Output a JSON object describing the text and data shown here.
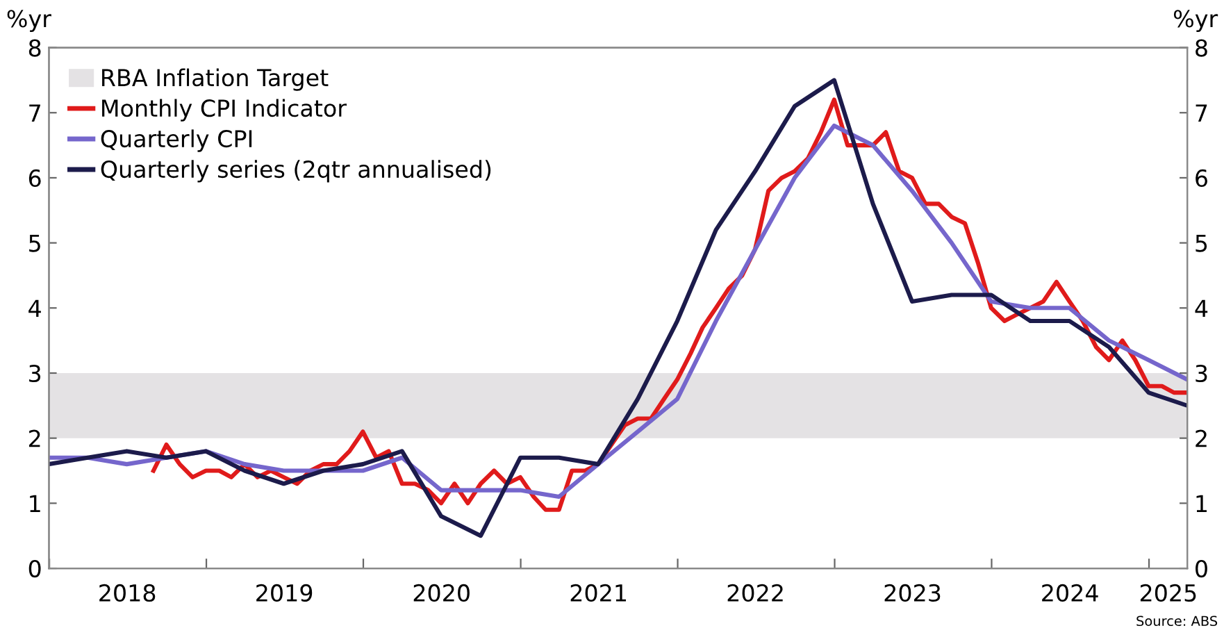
{
  "chart_data": {
    "type": "line",
    "ylabel": "%yr",
    "y2label": "%yr",
    "xlim": [
      "2017-12-31",
      "2025-03-31"
    ],
    "xticks": [
      {
        "value": "2018-01-01",
        "label": null
      },
      {
        "value": "2019-01-01",
        "label": null
      },
      {
        "value": "2020-01-01",
        "label": null
      },
      {
        "value": "2021-01-01",
        "label": null
      },
      {
        "value": "2022-01-01",
        "label": null
      },
      {
        "value": "2023-01-01",
        "label": null
      },
      {
        "value": "2024-01-01",
        "label": null
      },
      {
        "value": "2025-01-01",
        "label": null
      },
      {
        "value": "2018-07-01",
        "label": "2018"
      },
      {
        "value": "2019-07-01",
        "label": "2019"
      },
      {
        "value": "2020-07-01",
        "label": "2020"
      },
      {
        "value": "2021-07-01",
        "label": "2021"
      },
      {
        "value": "2022-07-01",
        "label": "2022"
      },
      {
        "value": "2023-07-01",
        "label": "2023"
      },
      {
        "value": "2024-07-01",
        "label": "2024"
      },
      {
        "value": "2025-02-15",
        "label": "2025"
      }
    ],
    "ylim": [
      0,
      8
    ],
    "yticks": [
      0,
      1,
      2,
      3,
      4,
      5,
      6,
      7,
      8
    ],
    "y2lim": [
      0,
      8
    ],
    "y2ticks": [
      0,
      1,
      2,
      3,
      4,
      5,
      6,
      7,
      8
    ],
    "grid": false,
    "legend": "top left",
    "line_style": "solid",
    "marker": "none",
    "bands": [
      {
        "axis": "y",
        "from": 2,
        "to": 3,
        "label": "RBA Inflation Target",
        "color": "#e4e2e4"
      }
    ],
    "series": [
      {
        "name": "Monthly CPI Indicator",
        "color": "#e01b1b",
        "x": [
          "2018-08-31",
          "2018-09-30",
          "2018-10-31",
          "2018-11-30",
          "2018-12-31",
          "2019-01-31",
          "2019-02-28",
          "2019-03-31",
          "2019-04-30",
          "2019-05-31",
          "2019-06-30",
          "2019-07-31",
          "2019-08-31",
          "2019-09-30",
          "2019-10-31",
          "2019-11-30",
          "2019-12-31",
          "2020-01-31",
          "2020-02-29",
          "2020-03-31",
          "2020-04-30",
          "2020-05-31",
          "2020-06-30",
          "2020-07-31",
          "2020-08-31",
          "2020-09-30",
          "2020-10-31",
          "2020-11-30",
          "2020-12-31",
          "2021-01-31",
          "2021-02-28",
          "2021-03-31",
          "2021-04-30",
          "2021-05-31",
          "2021-06-30",
          "2021-07-31",
          "2021-08-31",
          "2021-09-30",
          "2021-10-31",
          "2021-11-30",
          "2021-12-31",
          "2022-01-31",
          "2022-02-28",
          "2022-03-31",
          "2022-04-30",
          "2022-05-31",
          "2022-06-30",
          "2022-07-31",
          "2022-08-31",
          "2022-09-30",
          "2022-10-31",
          "2022-11-30",
          "2022-12-31",
          "2023-01-31",
          "2023-02-28",
          "2023-03-31",
          "2023-04-30",
          "2023-05-31",
          "2023-06-30",
          "2023-07-31",
          "2023-08-31",
          "2023-09-30",
          "2023-10-31",
          "2023-11-30",
          "2023-12-31",
          "2024-01-31",
          "2024-02-29",
          "2024-03-31",
          "2024-04-30",
          "2024-05-31",
          "2024-06-30",
          "2024-07-31",
          "2024-08-31",
          "2024-09-30",
          "2024-10-31",
          "2024-11-30",
          "2024-12-31",
          "2025-01-31",
          "2025-02-28",
          "2025-03-31"
        ],
        "values": [
          1.5,
          1.9,
          1.6,
          1.4,
          1.5,
          1.5,
          1.4,
          1.6,
          1.4,
          1.5,
          1.4,
          1.3,
          1.5,
          1.6,
          1.6,
          1.8,
          2.1,
          1.7,
          1.8,
          1.3,
          1.3,
          1.2,
          1.0,
          1.3,
          1.0,
          1.3,
          1.5,
          1.3,
          1.4,
          1.1,
          0.9,
          0.9,
          1.5,
          1.5,
          1.6,
          1.9,
          2.2,
          2.3,
          2.3,
          2.6,
          2.9,
          3.3,
          3.7,
          4.0,
          4.3,
          4.5,
          4.9,
          5.8,
          6.0,
          6.1,
          6.3,
          6.7,
          7.2,
          6.5,
          6.5,
          6.5,
          6.7,
          6.1,
          6.0,
          5.6,
          5.6,
          5.4,
          5.3,
          4.7,
          4.0,
          3.8,
          3.9,
          4.0,
          4.1,
          4.4,
          4.1,
          3.8,
          3.4,
          3.2,
          3.5,
          3.2,
          2.8,
          2.8,
          2.7,
          2.7
        ]
      },
      {
        "name": "Quarterly CPI",
        "color": "#7566cc",
        "x": [
          "2017-12-31",
          "2018-03-31",
          "2018-06-30",
          "2018-09-30",
          "2018-12-31",
          "2019-03-31",
          "2019-06-30",
          "2019-09-30",
          "2019-12-31",
          "2020-03-31",
          "2020-06-30",
          "2020-09-30",
          "2020-12-31",
          "2021-03-31",
          "2021-06-30",
          "2021-09-30",
          "2021-12-31",
          "2022-03-31",
          "2022-06-30",
          "2022-09-30",
          "2022-12-31",
          "2023-03-31",
          "2023-06-30",
          "2023-09-30",
          "2023-12-31",
          "2024-03-31",
          "2024-06-30",
          "2024-09-30",
          "2024-12-31",
          "2025-03-31"
        ],
        "values": [
          1.7,
          1.7,
          1.6,
          1.7,
          1.8,
          1.6,
          1.5,
          1.5,
          1.5,
          1.7,
          1.2,
          1.2,
          1.2,
          1.1,
          1.6,
          2.1,
          2.6,
          3.8,
          4.9,
          6.0,
          6.8,
          6.5,
          5.8,
          5.0,
          4.1,
          4.0,
          4.0,
          3.5,
          3.2,
          2.9
        ]
      },
      {
        "name": "Quarterly series (2qtr annualised)",
        "color": "#1c1b4b",
        "x": [
          "2017-12-31",
          "2018-03-31",
          "2018-06-30",
          "2018-09-30",
          "2018-12-31",
          "2019-03-31",
          "2019-06-30",
          "2019-09-30",
          "2019-12-31",
          "2020-03-31",
          "2020-06-30",
          "2020-09-30",
          "2020-12-31",
          "2021-03-31",
          "2021-06-30",
          "2021-09-30",
          "2021-12-31",
          "2022-03-31",
          "2022-06-30",
          "2022-09-30",
          "2022-12-31",
          "2023-03-31",
          "2023-06-30",
          "2023-09-30",
          "2023-12-31",
          "2024-03-31",
          "2024-06-30",
          "2024-09-30",
          "2024-12-31",
          "2025-03-31"
        ],
        "values": [
          1.6,
          1.7,
          1.8,
          1.7,
          1.8,
          1.5,
          1.3,
          1.5,
          1.6,
          1.8,
          0.8,
          0.5,
          1.7,
          1.7,
          1.6,
          2.6,
          3.8,
          5.2,
          6.1,
          7.1,
          7.5,
          5.6,
          4.1,
          4.2,
          4.2,
          3.8,
          3.8,
          3.4,
          2.7,
          2.5
        ]
      }
    ],
    "annotations": [
      "Source: ABS"
    ]
  }
}
